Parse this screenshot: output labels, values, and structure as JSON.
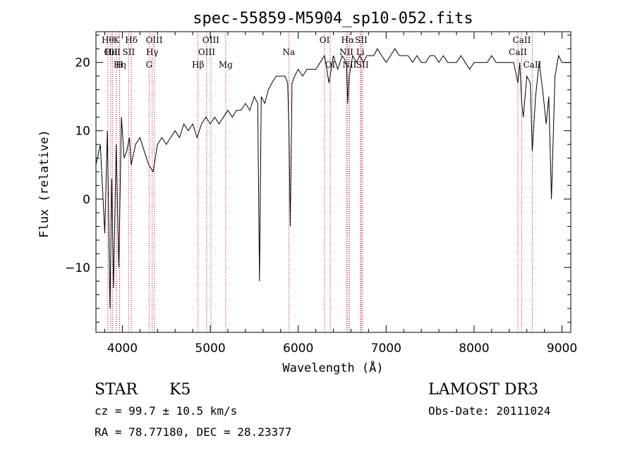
{
  "chart_data": {
    "type": "line",
    "title": "spec-55859-M5904_sp10-052.fits",
    "xlabel": "Wavelength (Å)",
    "ylabel": "Flux (relative)",
    "xlim": [
      3700,
      9100
    ],
    "ylim": [
      -19.5,
      24.5
    ],
    "xticks": [
      4000,
      5000,
      6000,
      7000,
      8000,
      9000
    ],
    "xtick_labels": [
      "4000",
      "5000",
      "6000",
      "7000",
      "8000",
      "9000"
    ],
    "yticks": [
      -10,
      0,
      10,
      20
    ],
    "ytick_labels": [
      "−10",
      "0",
      "10",
      "20"
    ],
    "series": [
      {
        "name": "spectrum",
        "x": [
          3700,
          3750,
          3800,
          3830,
          3860,
          3880,
          3900,
          3930,
          3960,
          3990,
          4020,
          4050,
          4080,
          4100,
          4150,
          4200,
          4250,
          4300,
          4350,
          4400,
          4450,
          4500,
          4550,
          4600,
          4650,
          4700,
          4750,
          4800,
          4850,
          4900,
          4950,
          5000,
          5050,
          5100,
          5150,
          5200,
          5250,
          5300,
          5350,
          5400,
          5450,
          5500,
          5540,
          5560,
          5580,
          5620,
          5660,
          5700,
          5750,
          5800,
          5850,
          5880,
          5895,
          5910,
          5930,
          5960,
          6000,
          6050,
          6100,
          6150,
          6200,
          6250,
          6300,
          6350,
          6400,
          6450,
          6500,
          6550,
          6563,
          6580,
          6620,
          6660,
          6700,
          6740,
          6780,
          6820,
          6860,
          6900,
          6950,
          7000,
          7050,
          7100,
          7150,
          7200,
          7250,
          7300,
          7350,
          7400,
          7450,
          7500,
          7550,
          7600,
          7650,
          7700,
          7750,
          7800,
          7850,
          7900,
          7950,
          8000,
          8050,
          8100,
          8150,
          8200,
          8250,
          8300,
          8350,
          8400,
          8450,
          8498,
          8520,
          8542,
          8560,
          8600,
          8640,
          8662,
          8700,
          8740,
          8780,
          8820,
          8850,
          8880,
          8920,
          8960,
          9000,
          9050,
          9100
        ],
        "y": [
          5,
          8,
          -5,
          10,
          -16,
          3,
          -13,
          8,
          -10,
          12,
          6,
          7,
          9,
          5,
          8,
          9,
          7,
          5,
          4,
          8,
          9,
          8,
          9,
          10,
          9,
          11,
          10,
          11,
          9,
          11,
          12,
          11,
          12,
          11,
          12,
          13,
          12,
          13,
          13,
          14,
          13,
          15,
          14,
          -12,
          15,
          14,
          16,
          17,
          18,
          18,
          18,
          17,
          10,
          -4,
          17,
          18,
          19,
          18,
          19,
          19,
          19,
          20,
          21,
          17,
          21,
          19,
          21,
          20,
          14,
          18,
          21,
          20,
          21,
          20,
          21,
          21,
          21,
          22,
          21,
          20,
          21,
          22,
          21,
          21,
          21,
          20,
          21,
          20,
          20,
          21,
          21,
          20,
          21,
          20,
          20,
          20,
          21,
          20,
          19,
          20,
          20,
          20,
          20,
          21,
          20,
          20,
          20,
          20,
          20,
          17,
          20,
          14,
          12,
          18,
          17,
          7,
          15,
          20,
          16,
          11,
          15,
          0,
          18,
          21,
          20,
          20,
          20
        ]
      }
    ],
    "spectral_lines": [
      {
        "wavelength": 3835,
        "label": "Hθ",
        "row": 0
      },
      {
        "wavelength": 3869,
        "label": "OII",
        "row": 1
      },
      {
        "wavelength": 3889,
        "label": "HeI",
        "row": 1
      },
      {
        "wavelength": 3970,
        "label": "Hη",
        "row": 2
      },
      {
        "wavelength": 3934,
        "label": "K",
        "row": 0
      },
      {
        "wavelength": 3968,
        "label": "H",
        "row": 2
      },
      {
        "wavelength": 4072,
        "label": "SII",
        "row": 1
      },
      {
        "wavelength": 4102,
        "label": "Hδ",
        "row": 0
      },
      {
        "wavelength": 4305,
        "label": "G",
        "row": 2
      },
      {
        "wavelength": 4340,
        "label": "Hγ",
        "row": 1
      },
      {
        "wavelength": 4363,
        "label": "OIII",
        "row": 0
      },
      {
        "wavelength": 4861,
        "label": "Hβ",
        "row": 2
      },
      {
        "wavelength": 4959,
        "label": "OIII",
        "row": 1
      },
      {
        "wavelength": 5007,
        "label": "OIII",
        "row": 0
      },
      {
        "wavelength": 5175,
        "label": "Mg",
        "row": 2
      },
      {
        "wavelength": 5893,
        "label": "Na",
        "row": 1
      },
      {
        "wavelength": 6300,
        "label": "OI",
        "row": 0
      },
      {
        "wavelength": 6364,
        "label": "OI",
        "row": 2
      },
      {
        "wavelength": 6548,
        "label": "NII",
        "row": 1
      },
      {
        "wavelength": 6563,
        "label": "Hα",
        "row": 0
      },
      {
        "wavelength": 6584,
        "label": "NII",
        "row": 2
      },
      {
        "wavelength": 6707,
        "label": "Li",
        "row": 1
      },
      {
        "wavelength": 6717,
        "label": "SII",
        "row": 0
      },
      {
        "wavelength": 6731,
        "label": "SII",
        "row": 2
      },
      {
        "wavelength": 8498,
        "label": "CaII",
        "row": 1
      },
      {
        "wavelength": 8542,
        "label": "CaII",
        "row": 0
      },
      {
        "wavelength": 8662,
        "label": "CaII",
        "row": 2
      }
    ]
  },
  "info": {
    "object_class": "STAR",
    "subclass": "K5",
    "survey": "LAMOST DR3",
    "cz": "cz = 99.7 ± 10.5 km/s",
    "obs_date": "Obs-Date: 20111024",
    "coords": "RA =  78.77180, DEC =  28.23377"
  }
}
